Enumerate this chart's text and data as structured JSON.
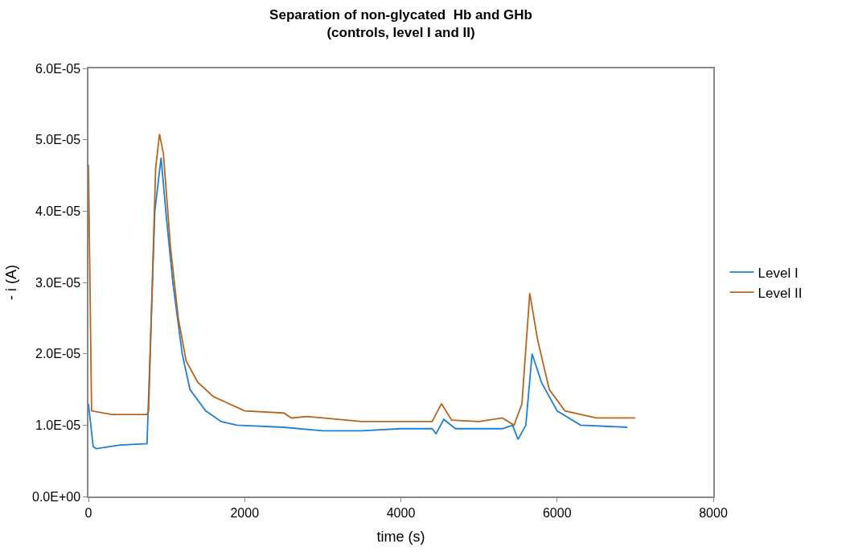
{
  "chart_data": {
    "type": "line",
    "title": "Separation of non-glycated  Hb and GHb\n(controls, level I and II)",
    "xlabel": "time (s)",
    "ylabel": "- i (A)",
    "xlim": [
      0,
      8000
    ],
    "xticks": [
      0,
      2000,
      4000,
      6000,
      8000
    ],
    "ylim": [
      0,
      6e-05
    ],
    "yticks": [
      {
        "value": 0,
        "label": "0.0E+00"
      },
      {
        "value": 1e-05,
        "label": "1.0E-05"
      },
      {
        "value": 2e-05,
        "label": "2.0E-05"
      },
      {
        "value": 3e-05,
        "label": "3.0E-05"
      },
      {
        "value": 4e-05,
        "label": "4.0E-05"
      },
      {
        "value": 5e-05,
        "label": "5.0E-05"
      },
      {
        "value": 6e-05,
        "label": "6.0E-05"
      }
    ],
    "legend": "right",
    "marker": "none",
    "line_style": "solid",
    "series": [
      {
        "name": "Level I",
        "color": "#1f7fd0",
        "x": [
          0,
          60,
          100,
          400,
          750,
          850,
          930,
          990,
          1080,
          1200,
          1300,
          1500,
          1700,
          1900,
          2500,
          3000,
          3500,
          4000,
          4400,
          4450,
          4550,
          4700,
          5300,
          5430,
          5500,
          5600,
          5680,
          5800,
          6000,
          6300,
          6900
        ],
        "values": [
          1.3e-05,
          7e-06,
          6.7e-06,
          7.2e-06,
          7.4e-06,
          4e-05,
          4.75e-05,
          4e-05,
          3e-05,
          2e-05,
          1.5e-05,
          1.2e-05,
          1.05e-05,
          1e-05,
          9.7e-06,
          9.2e-06,
          9.2e-06,
          9.5e-06,
          9.5e-06,
          8.8e-06,
          1.08e-05,
          9.5e-06,
          9.5e-06,
          1e-05,
          8e-06,
          1e-05,
          2e-05,
          1.6e-05,
          1.2e-05,
          1e-05,
          9.7e-06
        ]
      },
      {
        "name": "Level II",
        "color": "#b5651d",
        "x": [
          0,
          40,
          300,
          750,
          770,
          860,
          910,
          960,
          1050,
          1150,
          1250,
          1400,
          1600,
          1800,
          1900,
          2000,
          2500,
          2600,
          2800,
          3000,
          3500,
          4000,
          4400,
          4520,
          4650,
          5000,
          5300,
          5450,
          5550,
          5650,
          5750,
          5900,
          6100,
          6500,
          7000
        ],
        "values": [
          4.65e-05,
          1.2e-05,
          1.15e-05,
          1.15e-05,
          1.2e-05,
          4.6e-05,
          5.08e-05,
          4.8e-05,
          3.5e-05,
          2.5e-05,
          1.9e-05,
          1.6e-05,
          1.4e-05,
          1.3e-05,
          1.25e-05,
          1.2e-05,
          1.17e-05,
          1.1e-05,
          1.12e-05,
          1.1e-05,
          1.05e-05,
          1.05e-05,
          1.05e-05,
          1.3e-05,
          1.07e-05,
          1.05e-05,
          1.1e-05,
          1e-05,
          1.3e-05,
          2.85e-05,
          2.2e-05,
          1.5e-05,
          1.2e-05,
          1.1e-05,
          1.1e-05
        ]
      }
    ]
  }
}
